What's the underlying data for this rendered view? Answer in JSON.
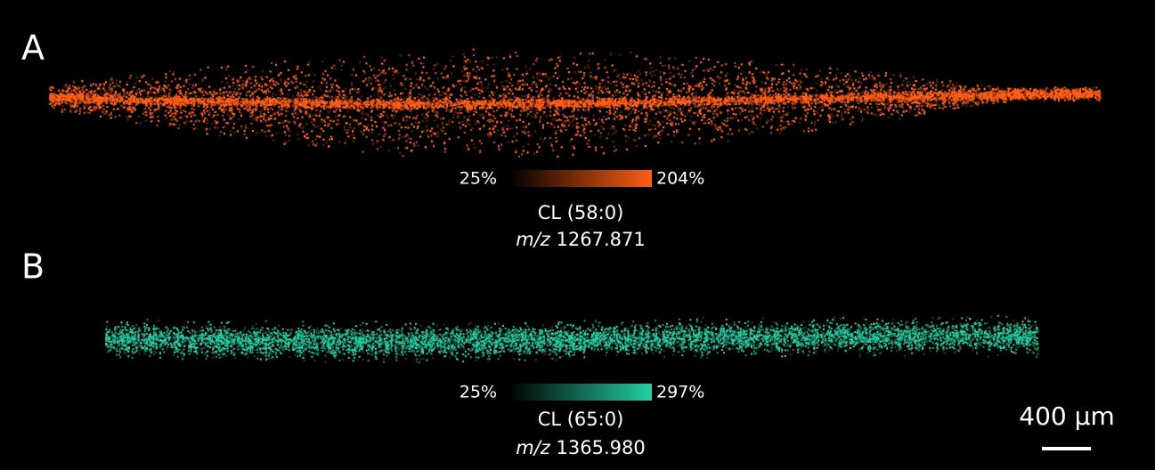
{
  "panels": [
    {
      "label": "A",
      "color": "#ff5e14",
      "min_label": "25%",
      "max_label": "204%",
      "compound": "CL (58:0)",
      "mz_prefix": "m/z",
      "mz": "1267.871"
    },
    {
      "label": "B",
      "color": "#22cfa2",
      "min_label": "25%",
      "max_label": "297%",
      "compound": "CL (65:0)",
      "mz_prefix": "m/z",
      "mz": "1365.980"
    }
  ],
  "scale_bar": "400 µm"
}
